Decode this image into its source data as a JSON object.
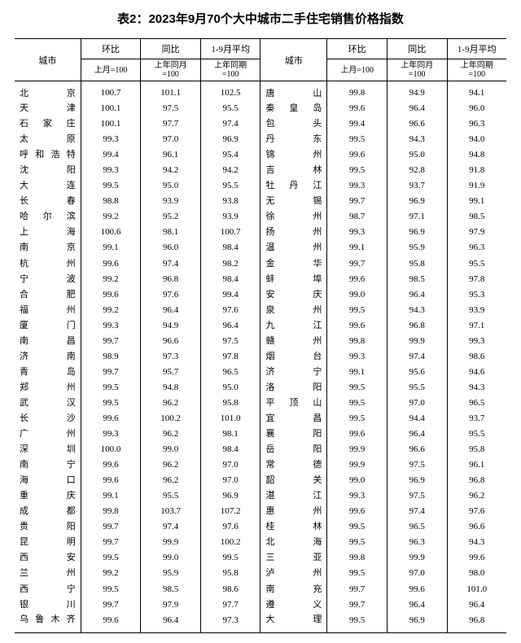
{
  "title": "表2：2023年9月70个大中城市二手住宅销售价格指数",
  "headers": {
    "city": "城市",
    "mom": "环比",
    "yoy": "同比",
    "avg": "1-9月平均",
    "mom_sub": "上月=100",
    "yoy_sub": "上年同月=100",
    "avg_sub": "上年同期=100"
  },
  "rows": [
    {
      "l": {
        "c": "北京",
        "m": "100.7",
        "y": "101.1",
        "a": "102.5"
      },
      "r": {
        "c": "唐山",
        "m": "99.8",
        "y": "94.9",
        "a": "94.1"
      }
    },
    {
      "l": {
        "c": "天津",
        "m": "100.1",
        "y": "97.5",
        "a": "95.5"
      },
      "r": {
        "c": "秦皇岛",
        "m": "99.6",
        "y": "96.4",
        "a": "96.0"
      }
    },
    {
      "l": {
        "c": "石家庄",
        "m": "100.1",
        "y": "97.7",
        "a": "97.4"
      },
      "r": {
        "c": "包头",
        "m": "99.4",
        "y": "96.6",
        "a": "96.3"
      }
    },
    {
      "l": {
        "c": "太原",
        "m": "99.3",
        "y": "97.0",
        "a": "96.9"
      },
      "r": {
        "c": "丹东",
        "m": "99.5",
        "y": "94.3",
        "a": "94.0"
      }
    },
    {
      "l": {
        "c": "呼和浩特",
        "m": "99.4",
        "y": "96.1",
        "a": "95.4"
      },
      "r": {
        "c": "锦州",
        "m": "99.6",
        "y": "95.0",
        "a": "94.8"
      }
    },
    {
      "l": {
        "c": "沈阳",
        "m": "99.3",
        "y": "94.2",
        "a": "94.2"
      },
      "r": {
        "c": "吉林",
        "m": "99.5",
        "y": "92.8",
        "a": "91.8"
      }
    },
    {
      "l": {
        "c": "大连",
        "m": "99.5",
        "y": "95.0",
        "a": "95.5"
      },
      "r": {
        "c": "牡丹江",
        "m": "99.3",
        "y": "93.7",
        "a": "91.9"
      }
    },
    {
      "l": {
        "c": "长春",
        "m": "98.8",
        "y": "93.9",
        "a": "93.8"
      },
      "r": {
        "c": "无锡",
        "m": "99.7",
        "y": "96.9",
        "a": "99.1"
      }
    },
    {
      "l": {
        "c": "哈尔滨",
        "m": "99.2",
        "y": "95.2",
        "a": "93.9"
      },
      "r": {
        "c": "徐州",
        "m": "98.7",
        "y": "97.1",
        "a": "98.5"
      }
    },
    {
      "l": {
        "c": "上海",
        "m": "100.6",
        "y": "98.1",
        "a": "100.7"
      },
      "r": {
        "c": "扬州",
        "m": "99.3",
        "y": "96.9",
        "a": "97.9"
      }
    },
    {
      "l": {
        "c": "南京",
        "m": "99.1",
        "y": "96.0",
        "a": "98.4"
      },
      "r": {
        "c": "温州",
        "m": "99.1",
        "y": "95.9",
        "a": "96.3"
      }
    },
    {
      "l": {
        "c": "杭州",
        "m": "99.6",
        "y": "97.4",
        "a": "98.2"
      },
      "r": {
        "c": "金华",
        "m": "99.7",
        "y": "95.8",
        "a": "95.5"
      }
    },
    {
      "l": {
        "c": "宁波",
        "m": "99.2",
        "y": "96.8",
        "a": "98.4"
      },
      "r": {
        "c": "蚌埠",
        "m": "99.6",
        "y": "98.5",
        "a": "97.8"
      }
    },
    {
      "l": {
        "c": "合肥",
        "m": "99.6",
        "y": "97.6",
        "a": "99.4"
      },
      "r": {
        "c": "安庆",
        "m": "99.0",
        "y": "96.4",
        "a": "95.3"
      }
    },
    {
      "l": {
        "c": "福州",
        "m": "99.2",
        "y": "96.4",
        "a": "97.6"
      },
      "r": {
        "c": "泉州",
        "m": "99.5",
        "y": "94.3",
        "a": "93.9"
      }
    },
    {
      "l": {
        "c": "厦门",
        "m": "99.3",
        "y": "94.9",
        "a": "96.4"
      },
      "r": {
        "c": "九江",
        "m": "99.6",
        "y": "96.8",
        "a": "97.1"
      }
    },
    {
      "l": {
        "c": "南昌",
        "m": "99.7",
        "y": "96.6",
        "a": "97.5"
      },
      "r": {
        "c": "赣州",
        "m": "99.8",
        "y": "99.9",
        "a": "99.3"
      }
    },
    {
      "l": {
        "c": "济南",
        "m": "98.9",
        "y": "97.3",
        "a": "97.8"
      },
      "r": {
        "c": "烟台",
        "m": "99.3",
        "y": "97.4",
        "a": "98.6"
      }
    },
    {
      "l": {
        "c": "青岛",
        "m": "99.7",
        "y": "95.7",
        "a": "96.5"
      },
      "r": {
        "c": "济宁",
        "m": "99.1",
        "y": "95.6",
        "a": "94.6"
      }
    },
    {
      "l": {
        "c": "郑州",
        "m": "99.5",
        "y": "94.8",
        "a": "95.0"
      },
      "r": {
        "c": "洛阳",
        "m": "99.5",
        "y": "95.5",
        "a": "94.3"
      }
    },
    {
      "l": {
        "c": "武汉",
        "m": "99.5",
        "y": "96.2",
        "a": "95.8"
      },
      "r": {
        "c": "平顶山",
        "m": "99.5",
        "y": "97.0",
        "a": "96.5"
      }
    },
    {
      "l": {
        "c": "长沙",
        "m": "99.6",
        "y": "100.2",
        "a": "101.0"
      },
      "r": {
        "c": "宜昌",
        "m": "99.5",
        "y": "94.4",
        "a": "93.7"
      }
    },
    {
      "l": {
        "c": "广州",
        "m": "99.3",
        "y": "96.2",
        "a": "98.1"
      },
      "r": {
        "c": "襄阳",
        "m": "99.6",
        "y": "96.4",
        "a": "95.5"
      }
    },
    {
      "l": {
        "c": "深圳",
        "m": "100.0",
        "y": "99.0",
        "a": "98.4"
      },
      "r": {
        "c": "岳阳",
        "m": "99.9",
        "y": "96.6",
        "a": "95.8"
      }
    },
    {
      "l": {
        "c": "南宁",
        "m": "99.6",
        "y": "96.2",
        "a": "97.0"
      },
      "r": {
        "c": "常德",
        "m": "99.9",
        "y": "97.5",
        "a": "96.1"
      }
    },
    {
      "l": {
        "c": "海口",
        "m": "99.6",
        "y": "96.2",
        "a": "97.0"
      },
      "r": {
        "c": "韶关",
        "m": "99.0",
        "y": "96.9",
        "a": "96.8"
      }
    },
    {
      "l": {
        "c": "重庆",
        "m": "99.1",
        "y": "95.5",
        "a": "96.9"
      },
      "r": {
        "c": "湛江",
        "m": "99.3",
        "y": "97.5",
        "a": "96.2"
      }
    },
    {
      "l": {
        "c": "成都",
        "m": "99.8",
        "y": "103.7",
        "a": "107.2"
      },
      "r": {
        "c": "惠州",
        "m": "99.6",
        "y": "97.4",
        "a": "97.6"
      }
    },
    {
      "l": {
        "c": "贵阳",
        "m": "99.7",
        "y": "97.4",
        "a": "97.6"
      },
      "r": {
        "c": "桂林",
        "m": "99.5",
        "y": "96.5",
        "a": "96.6"
      }
    },
    {
      "l": {
        "c": "昆明",
        "m": "99.7",
        "y": "99.9",
        "a": "100.2"
      },
      "r": {
        "c": "北海",
        "m": "99.5",
        "y": "96.3",
        "a": "94.3"
      }
    },
    {
      "l": {
        "c": "西安",
        "m": "99.5",
        "y": "99.0",
        "a": "99.5"
      },
      "r": {
        "c": "三亚",
        "m": "99.8",
        "y": "99.9",
        "a": "99.6"
      }
    },
    {
      "l": {
        "c": "兰州",
        "m": "99.2",
        "y": "95.9",
        "a": "95.8"
      },
      "r": {
        "c": "泸州",
        "m": "99.5",
        "y": "97.0",
        "a": "98.0"
      }
    },
    {
      "l": {
        "c": "西宁",
        "m": "99.5",
        "y": "98.5",
        "a": "98.6"
      },
      "r": {
        "c": "南充",
        "m": "99.7",
        "y": "99.6",
        "a": "101.0"
      }
    },
    {
      "l": {
        "c": "银川",
        "m": "99.7",
        "y": "97.9",
        "a": "97.7"
      },
      "r": {
        "c": "遵义",
        "m": "99.7",
        "y": "96.4",
        "a": "96.4"
      }
    },
    {
      "l": {
        "c": "乌鲁木齐",
        "m": "99.6",
        "y": "96.4",
        "a": "97.3"
      },
      "r": {
        "c": "大理",
        "m": "99.5",
        "y": "96.9",
        "a": "96.8"
      }
    }
  ]
}
